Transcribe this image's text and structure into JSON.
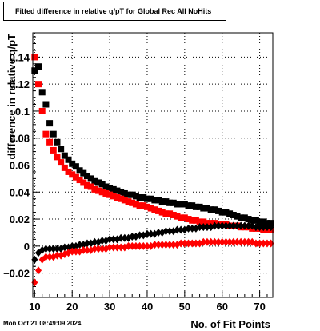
{
  "chart_data": {
    "type": "scatter",
    "title": "Fitted difference in relative q/pT for Global Rec All NoHits",
    "xlabel": "No. of Fit Points",
    "ylabel": "difference in relative q/pT",
    "xlim": [
      9.5,
      73.5
    ],
    "ylim": [
      -0.038,
      0.158
    ],
    "x_ticks": [
      10,
      20,
      30,
      40,
      50,
      60,
      70
    ],
    "x_tick_labels": [
      "10",
      "20",
      "30",
      "40",
      "50",
      "60",
      "70"
    ],
    "y_ticks": [
      -0.02,
      0,
      0.02,
      0.04,
      0.06,
      0.08,
      0.1,
      0.12,
      0.14
    ],
    "y_tick_labels": [
      "−0.02",
      "0",
      "0.02",
      "0.04",
      "0.06",
      "0.08",
      "0.1",
      "0.12",
      "0.14"
    ],
    "grid": true,
    "timestamp": "Mon Oct 21 08:49:09 2024",
    "series": [
      {
        "marker": "square",
        "color": "#000000",
        "x": [
          10,
          11,
          12,
          13,
          14,
          15,
          16,
          17,
          18,
          19,
          20,
          21,
          22,
          23,
          24,
          25,
          26,
          27,
          28,
          29,
          30,
          31,
          32,
          33,
          34,
          35,
          36,
          37,
          38,
          39,
          40,
          41,
          42,
          43,
          44,
          45,
          46,
          47,
          48,
          49,
          50,
          51,
          52,
          53,
          54,
          55,
          56,
          57,
          58,
          59,
          60,
          61,
          62,
          63,
          64,
          65,
          66,
          67,
          68,
          69,
          70,
          71,
          72,
          73
        ],
        "y": [
          0.13,
          0.133,
          0.114,
          0.105,
          0.091,
          0.083,
          0.077,
          0.072,
          0.067,
          0.064,
          0.061,
          0.059,
          0.056,
          0.054,
          0.052,
          0.05,
          0.048,
          0.047,
          0.046,
          0.044,
          0.043,
          0.042,
          0.041,
          0.04,
          0.039,
          0.038,
          0.038,
          0.037,
          0.036,
          0.036,
          0.035,
          0.035,
          0.034,
          0.034,
          0.033,
          0.033,
          0.032,
          0.032,
          0.031,
          0.031,
          0.031,
          0.03,
          0.03,
          0.029,
          0.029,
          0.028,
          0.028,
          0.027,
          0.027,
          0.026,
          0.025,
          0.025,
          0.024,
          0.023,
          0.022,
          0.021,
          0.021,
          0.02,
          0.019,
          0.019,
          0.018,
          0.018,
          0.017,
          0.017
        ]
      },
      {
        "marker": "square",
        "color": "#ff0000",
        "x": [
          10,
          11,
          12,
          13,
          14,
          15,
          16,
          17,
          18,
          19,
          20,
          21,
          22,
          23,
          24,
          25,
          26,
          27,
          28,
          29,
          30,
          31,
          32,
          33,
          34,
          35,
          36,
          37,
          38,
          39,
          40,
          41,
          42,
          43,
          44,
          45,
          46,
          47,
          48,
          49,
          50,
          51,
          52,
          53,
          54,
          55,
          56,
          57,
          58,
          59,
          60,
          61,
          62,
          63,
          64,
          65,
          66,
          67,
          68,
          69,
          70,
          71,
          72,
          73
        ],
        "y": [
          0.14,
          0.12,
          0.1,
          0.083,
          0.077,
          0.071,
          0.066,
          0.062,
          0.058,
          0.055,
          0.053,
          0.051,
          0.049,
          0.047,
          0.045,
          0.044,
          0.042,
          0.041,
          0.04,
          0.039,
          0.038,
          0.037,
          0.036,
          0.035,
          0.034,
          0.033,
          0.032,
          0.031,
          0.03,
          0.03,
          0.029,
          0.028,
          0.027,
          0.026,
          0.025,
          0.024,
          0.024,
          0.023,
          0.022,
          0.021,
          0.021,
          0.02,
          0.019,
          0.019,
          0.018,
          0.018,
          0.017,
          0.017,
          0.017,
          0.016,
          0.016,
          0.016,
          0.015,
          0.015,
          0.015,
          0.014,
          0.014,
          0.014,
          0.013,
          0.013,
          0.013,
          0.012,
          0.012,
          0.012
        ]
      },
      {
        "marker": "diamond",
        "color": "#000000",
        "x": [
          10,
          11,
          12,
          13,
          14,
          15,
          16,
          17,
          18,
          19,
          20,
          21,
          22,
          23,
          24,
          25,
          26,
          27,
          28,
          29,
          30,
          31,
          32,
          33,
          34,
          35,
          36,
          37,
          38,
          39,
          40,
          41,
          42,
          43,
          44,
          45,
          46,
          47,
          48,
          49,
          50,
          51,
          52,
          53,
          54,
          55,
          56,
          57,
          58,
          59,
          60,
          61,
          62,
          63,
          64,
          65,
          66,
          67,
          68,
          69,
          70,
          71,
          72,
          73
        ],
        "y": [
          -0.01,
          -0.005,
          -0.003,
          -0.002,
          -0.002,
          -0.002,
          -0.002,
          -0.002,
          -0.001,
          -0.001,
          0.0,
          0.0,
          0.001,
          0.001,
          0.002,
          0.002,
          0.003,
          0.003,
          0.004,
          0.004,
          0.005,
          0.005,
          0.005,
          0.006,
          0.006,
          0.006,
          0.007,
          0.007,
          0.008,
          0.008,
          0.009,
          0.009,
          0.009,
          0.01,
          0.01,
          0.011,
          0.011,
          0.011,
          0.012,
          0.012,
          0.012,
          0.013,
          0.013,
          0.013,
          0.014,
          0.014,
          0.014,
          0.014,
          0.015,
          0.015,
          0.015,
          0.015,
          0.015,
          0.015,
          0.015,
          0.015,
          0.015,
          0.015,
          0.015,
          0.014,
          0.014,
          0.014,
          0.014,
          0.014
        ]
      },
      {
        "marker": "diamond",
        "color": "#ff0000",
        "x": [
          10,
          11,
          12,
          13,
          14,
          15,
          16,
          17,
          18,
          19,
          20,
          21,
          22,
          23,
          24,
          25,
          26,
          27,
          28,
          29,
          30,
          31,
          32,
          33,
          34,
          35,
          36,
          37,
          38,
          39,
          40,
          41,
          42,
          43,
          44,
          45,
          46,
          47,
          48,
          49,
          50,
          51,
          52,
          53,
          54,
          55,
          56,
          57,
          58,
          59,
          60,
          61,
          62,
          63,
          64,
          65,
          66,
          67,
          68,
          69,
          70,
          71,
          72,
          73
        ],
        "y": [
          -0.027,
          -0.018,
          -0.01,
          -0.008,
          -0.008,
          -0.008,
          -0.007,
          -0.007,
          -0.006,
          -0.005,
          -0.004,
          -0.004,
          -0.004,
          -0.003,
          -0.003,
          -0.003,
          -0.002,
          -0.002,
          -0.002,
          -0.002,
          -0.001,
          -0.001,
          -0.001,
          -0.001,
          -0.001,
          0.0,
          0.0,
          0.0,
          0.0,
          0.0,
          0.0,
          0.0,
          0.001,
          0.001,
          0.001,
          0.001,
          0.001,
          0.001,
          0.001,
          0.002,
          0.002,
          0.002,
          0.002,
          0.002,
          0.002,
          0.003,
          0.003,
          0.003,
          0.003,
          0.003,
          0.003,
          0.003,
          0.003,
          0.003,
          0.003,
          0.003,
          0.003,
          0.003,
          0.003,
          0.002,
          0.002,
          0.002,
          0.002,
          0.002
        ]
      }
    ]
  }
}
